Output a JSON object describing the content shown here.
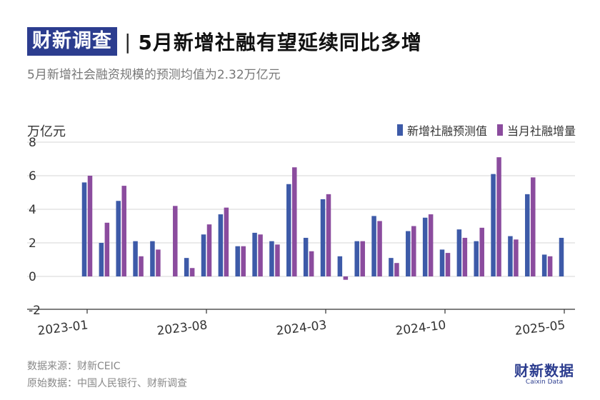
{
  "header": {
    "brand": "财新调查",
    "separator": "|",
    "title": "5月新增社融有望延续同比多增"
  },
  "subtitle": "5月新增社会融资规模的预测均值为2.32万亿元",
  "colors": {
    "forecast": "#3d5aa8",
    "actual": "#8b4c9e",
    "brand": "#2c3d8f"
  },
  "chart_data": {
    "type": "bar",
    "unit_label": "万亿元",
    "ylim": [
      -2,
      8
    ],
    "yticks": [
      -2,
      0,
      2,
      4,
      6,
      8
    ],
    "categories": [
      "2023-01",
      "2023-02",
      "2023-03",
      "2023-04",
      "2023-05",
      "2023-06",
      "2023-07",
      "2023-08",
      "2023-09",
      "2023-10",
      "2023-11",
      "2023-12",
      "2024-01",
      "2024-02",
      "2024-03",
      "2024-04",
      "2024-05",
      "2024-06",
      "2024-07",
      "2024-08",
      "2024-09",
      "2024-10",
      "2024-11",
      "2024-12",
      "2025-01",
      "2025-02",
      "2025-03",
      "2025-04",
      "2025-05"
    ],
    "xtick_labels": [
      {
        "category": "2023-01",
        "label": "2023-01"
      },
      {
        "category": "2023-08",
        "label": "2023-08"
      },
      {
        "category": "2024-03",
        "label": "2024-03"
      },
      {
        "category": "2024-10",
        "label": "2024-10"
      },
      {
        "category": "2025-05",
        "label": "2025-05"
      }
    ],
    "series": [
      {
        "name": "新增社融预测值",
        "color": "#3d5aa8",
        "values": [
          5.6,
          2.0,
          4.5,
          2.1,
          2.1,
          null,
          1.1,
          2.5,
          3.7,
          1.8,
          2.6,
          2.1,
          5.5,
          2.3,
          4.6,
          1.2,
          2.1,
          3.6,
          1.1,
          2.7,
          3.5,
          1.6,
          2.8,
          2.1,
          6.1,
          2.4,
          4.9,
          1.3,
          2.3
        ]
      },
      {
        "name": "当月社融增量",
        "color": "#8b4c9e",
        "values": [
          6.0,
          3.2,
          5.4,
          1.2,
          1.6,
          4.2,
          0.5,
          3.1,
          4.1,
          1.8,
          2.5,
          1.9,
          6.5,
          1.5,
          4.9,
          -0.2,
          2.1,
          3.3,
          0.8,
          3.0,
          3.7,
          1.4,
          2.3,
          2.9,
          7.1,
          2.2,
          5.9,
          1.2,
          null
        ]
      }
    ],
    "grid": true,
    "legend_position": "top-right"
  },
  "footer": {
    "source": "数据来源：财新CEIC",
    "original": "原始数据：中国人民银行、财新调查"
  },
  "logo": {
    "main": "财新数据",
    "sub": "Caixin Data"
  }
}
